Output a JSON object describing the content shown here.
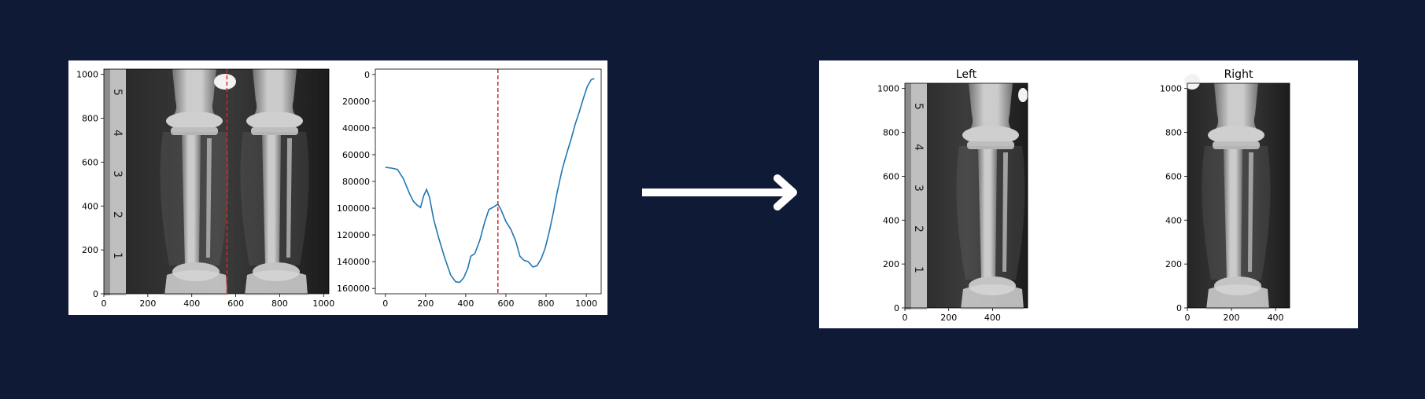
{
  "chart_data": [
    {
      "type": "image",
      "xticks": [
        "0",
        "200",
        "400",
        "600",
        "800",
        "1000"
      ],
      "yticks": [
        "0",
        "200",
        "400",
        "600",
        "800",
        "1000"
      ],
      "xlim": [
        0,
        1024
      ],
      "ylim": [
        1024,
        0
      ],
      "split_line": {
        "x": 560,
        "color": "#d62728",
        "style": "dashed"
      }
    },
    {
      "type": "line",
      "xticks": [
        "0",
        "200",
        "400",
        "600",
        "800",
        "1000"
      ],
      "yticks": [
        "0",
        "20000",
        "40000",
        "60000",
        "80000",
        "100000",
        "120000",
        "140000",
        "160000"
      ],
      "xlim": [
        -50,
        1074
      ],
      "ylim": [
        -4000,
        164000
      ],
      "line_color": "#1f77b4",
      "split_line": {
        "x": 560,
        "color": "#d62728",
        "style": "dashed"
      },
      "points": [
        [
          0,
          69500
        ],
        [
          30,
          70000
        ],
        [
          60,
          71000
        ],
        [
          90,
          78000
        ],
        [
          120,
          89000
        ],
        [
          140,
          95000
        ],
        [
          160,
          98000
        ],
        [
          175,
          99500
        ],
        [
          190,
          91000
        ],
        [
          205,
          86000
        ],
        [
          220,
          92000
        ],
        [
          240,
          108000
        ],
        [
          265,
          122000
        ],
        [
          295,
          137000
        ],
        [
          325,
          150000
        ],
        [
          350,
          155000
        ],
        [
          370,
          155500
        ],
        [
          390,
          152000
        ],
        [
          410,
          145000
        ],
        [
          425,
          136000
        ],
        [
          445,
          134000
        ],
        [
          470,
          124000
        ],
        [
          495,
          110000
        ],
        [
          515,
          101000
        ],
        [
          540,
          99000
        ],
        [
          560,
          97000
        ],
        [
          575,
          101000
        ],
        [
          600,
          110000
        ],
        [
          625,
          116000
        ],
        [
          650,
          125000
        ],
        [
          670,
          136000
        ],
        [
          690,
          139000
        ],
        [
          710,
          140000
        ],
        [
          735,
          144000
        ],
        [
          755,
          143000
        ],
        [
          775,
          138000
        ],
        [
          795,
          130000
        ],
        [
          815,
          118000
        ],
        [
          835,
          104000
        ],
        [
          855,
          88000
        ],
        [
          880,
          71000
        ],
        [
          905,
          58000
        ],
        [
          925,
          48000
        ],
        [
          945,
          37000
        ],
        [
          965,
          28000
        ],
        [
          985,
          18000
        ],
        [
          1005,
          9000
        ],
        [
          1024,
          4000
        ],
        [
          1040,
          3000
        ]
      ]
    },
    {
      "type": "image",
      "title": "Left",
      "xticks": [
        "0",
        "200",
        "400"
      ],
      "yticks": [
        "0",
        "200",
        "400",
        "600",
        "800",
        "1000"
      ],
      "xlim": [
        0,
        560
      ],
      "ylim": [
        1024,
        0
      ]
    },
    {
      "type": "image",
      "title": "Right",
      "xticks": [
        "0",
        "200",
        "400"
      ],
      "yticks": [
        "0",
        "200",
        "400",
        "600",
        "800",
        "1000"
      ],
      "xlim": [
        0,
        464
      ],
      "ylim": [
        1024,
        0
      ]
    }
  ],
  "colors": {
    "background": "#0e1a36",
    "panel": "#ffffff",
    "arrow": "#ffffff"
  },
  "icons": {
    "arrow": "right-arrow-icon"
  }
}
